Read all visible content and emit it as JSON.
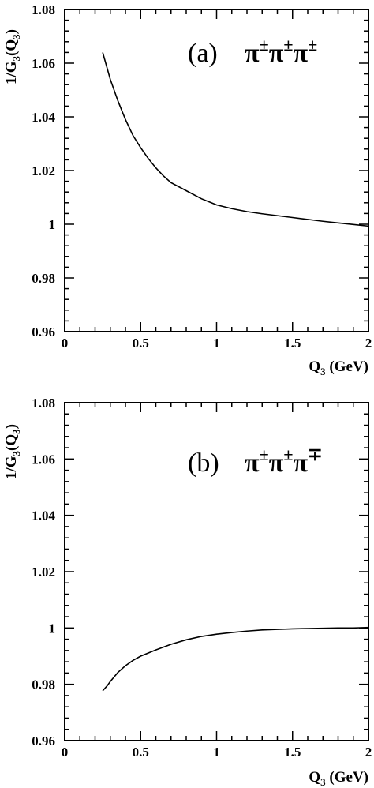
{
  "chart_data": [
    {
      "type": "line",
      "panel_label": "(a)",
      "process": {
        "base": "π",
        "sups": [
          "±",
          "±",
          "±"
        ]
      },
      "xlabel": {
        "main": "Q",
        "sub": "3",
        "rest": " (GeV)"
      },
      "ylabel": {
        "a": "1/G",
        "sub1": "3",
        "b": "(Q",
        "sub2": "3",
        "c": ")"
      },
      "xlim": [
        0,
        2
      ],
      "ylim": [
        0.96,
        1.08
      ],
      "x_ticks": [
        0,
        0.5,
        1,
        1.5,
        2
      ],
      "x_tick_labels": [
        "0",
        "0.5",
        "1",
        "1.5",
        "2"
      ],
      "y_ticks": [
        0.96,
        0.98,
        1.0,
        1.02,
        1.04,
        1.06,
        1.08
      ],
      "y_tick_labels": [
        "0.96",
        "0.98",
        "1",
        "1.02",
        "1.04",
        "1.06",
        "1.08"
      ],
      "grid": false,
      "series": [
        {
          "x": [
            0.25,
            0.3,
            0.35,
            0.4,
            0.45,
            0.5,
            0.55,
            0.6,
            0.65,
            0.7,
            0.8,
            0.9,
            1.0,
            1.1,
            1.2,
            1.3,
            1.4,
            1.5,
            1.6,
            1.7,
            1.8,
            1.9,
            2.0
          ],
          "y": [
            1.064,
            1.054,
            1.046,
            1.039,
            1.033,
            1.0285,
            1.0245,
            1.021,
            1.018,
            1.0155,
            1.0125,
            1.0095,
            1.0072,
            1.0058,
            1.0047,
            1.0039,
            1.0032,
            1.0025,
            1.0018,
            1.0011,
            1.0005,
            0.9999,
            0.9993
          ]
        }
      ]
    },
    {
      "type": "line",
      "panel_label": "(b)",
      "process": {
        "base": "π",
        "sups": [
          "±",
          "±",
          "∓"
        ]
      },
      "xlabel": {
        "main": "Q",
        "sub": "3",
        "rest": " (GeV)"
      },
      "ylabel": {
        "a": "1/G",
        "sub1": "3",
        "b": "(Q",
        "sub2": "3",
        "c": ")"
      },
      "xlim": [
        0,
        2
      ],
      "ylim": [
        0.96,
        1.08
      ],
      "x_ticks": [
        0,
        0.5,
        1,
        1.5,
        2
      ],
      "x_tick_labels": [
        "0",
        "0.5",
        "1",
        "1.5",
        "2"
      ],
      "y_ticks": [
        0.96,
        0.98,
        1.0,
        1.02,
        1.04,
        1.06,
        1.08
      ],
      "y_tick_labels": [
        "0.96",
        "0.98",
        "1",
        "1.02",
        "1.04",
        "1.06",
        "1.08"
      ],
      "grid": false,
      "series": [
        {
          "x": [
            0.25,
            0.28,
            0.3,
            0.35,
            0.4,
            0.45,
            0.5,
            0.6,
            0.7,
            0.8,
            0.9,
            1.0,
            1.1,
            1.2,
            1.3,
            1.4,
            1.5,
            1.6,
            1.7,
            1.8,
            1.9,
            2.0
          ],
          "y": [
            0.9777,
            0.9795,
            0.981,
            0.9842,
            0.9866,
            0.9885,
            0.99,
            0.9922,
            0.9942,
            0.9958,
            0.997,
            0.9978,
            0.9984,
            0.9989,
            0.9993,
            0.9995,
            0.9997,
            0.9998,
            0.9999,
            1.0,
            1.0,
            1.0002
          ]
        }
      ]
    }
  ]
}
